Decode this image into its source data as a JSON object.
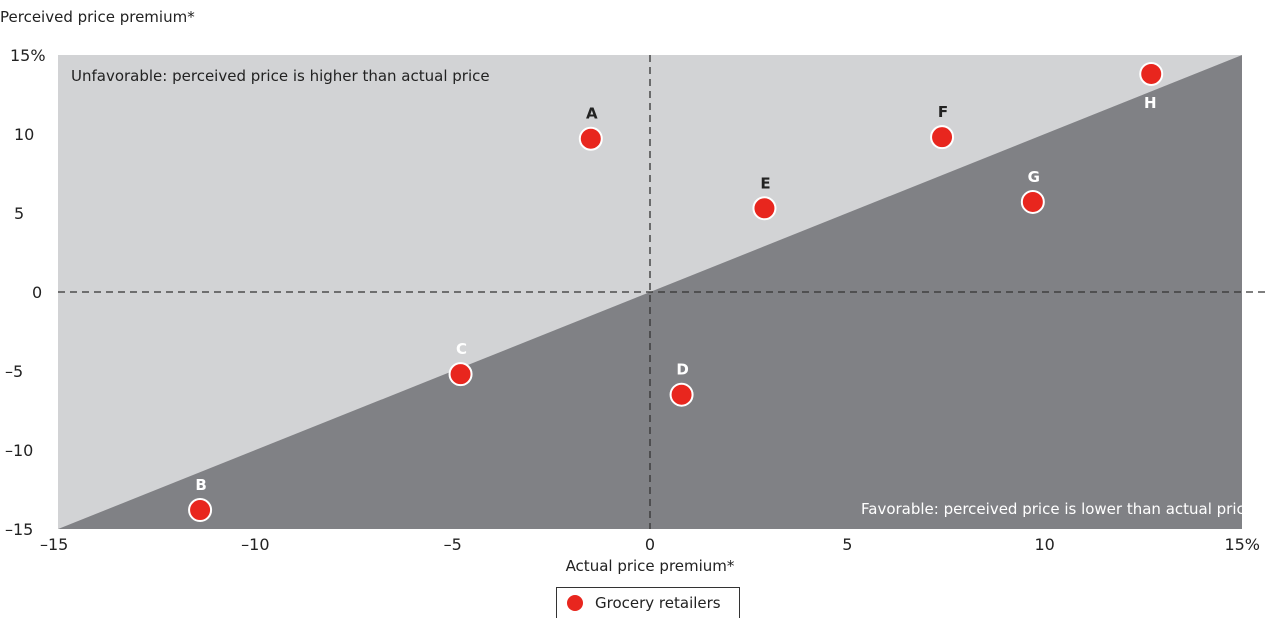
{
  "chart_data": {
    "type": "scatter",
    "ylabel": "Perceived price premium*",
    "xlabel": "Actual price premium*",
    "xlim": [
      -15,
      15
    ],
    "ylim": [
      -15,
      15
    ],
    "x_ticks": [
      "–15",
      "–10",
      "–5",
      "0",
      "5",
      "10",
      "15%"
    ],
    "y_ticks": [
      "15%",
      "10",
      "5",
      "0",
      "–5",
      "–10",
      "–15"
    ],
    "annotations": {
      "unfavorable": "Unfavorable: perceived price is higher than actual price",
      "favorable": "Favorable: perceived price is lower than actual price"
    },
    "series": [
      {
        "name": "Grocery retailers",
        "color": "#e8261e",
        "points": [
          {
            "label": "A",
            "x": -1.5,
            "y": 9.7
          },
          {
            "label": "B",
            "x": -11.4,
            "y": -13.8
          },
          {
            "label": "C",
            "x": -4.8,
            "y": -5.2
          },
          {
            "label": "D",
            "x": 0.8,
            "y": -6.5
          },
          {
            "label": "E",
            "x": 2.9,
            "y": 5.3
          },
          {
            "label": "F",
            "x": 7.4,
            "y": 9.8
          },
          {
            "label": "G",
            "x": 9.7,
            "y": 5.7
          },
          {
            "label": "H",
            "x": 12.7,
            "y": 13.8
          }
        ]
      }
    ],
    "region_colors": {
      "upper": "#d2d3d5",
      "lower": "#808185"
    },
    "grid": false
  }
}
